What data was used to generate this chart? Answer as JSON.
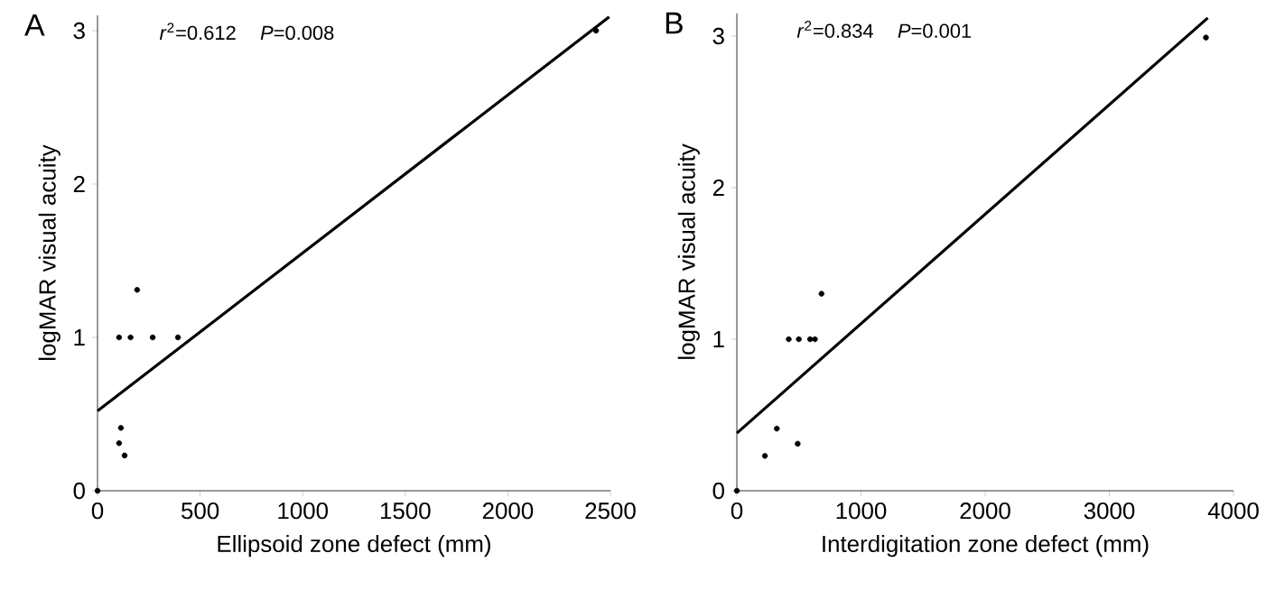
{
  "chart_data": [
    {
      "type": "scatter",
      "title": "A",
      "xlabel": "Ellipsoid zone defect (mm)",
      "ylabel": "logMAR visual acuity",
      "annotations": [
        "*r*$^{2}$=0.612",
        "*P*=0.008"
      ],
      "xlim": [
        0,
        2500
      ],
      "ylim": [
        0,
        3.1
      ],
      "xticks": [
        0,
        500,
        1000,
        1500,
        2000,
        2500
      ],
      "yticks": [
        0,
        1,
        2,
        3
      ],
      "marker": "circle",
      "grid": false,
      "series": [
        {
          "color": "#000000",
          "x": [
            0,
            105,
            114,
            132,
            105,
            161,
            269,
            392,
            193,
            2430
          ],
          "values": [
            0,
            0.31,
            0.41,
            0.23,
            1,
            1,
            1,
            1,
            1.31,
            3
          ]
        },
        {
          "type": "line",
          "marker": "none",
          "line_style": "solid",
          "color": "#000000",
          "x": [
            0,
            2494
          ],
          "values": [
            0.52,
            3.09
          ]
        }
      ]
    },
    {
      "type": "scatter",
      "title": "B",
      "xlabel": "Interdigitation zone defect (mm)",
      "ylabel": "logMAR visual acuity",
      "annotations": [
        "*r*$^{2}$=0.834",
        "*P*=0.001"
      ],
      "xlim": [
        0,
        4000
      ],
      "ylim": [
        0,
        3.15
      ],
      "xticks": [
        0,
        1000,
        2000,
        3000,
        4000
      ],
      "yticks": [
        0,
        1,
        2,
        3
      ],
      "marker": "circle",
      "grid": false,
      "series": [
        {
          "color": "#000000",
          "x": [
            0,
            226,
            322,
            490,
            418,
            499,
            590,
            629,
            682,
            3778
          ],
          "values": [
            0,
            0.23,
            0.41,
            0.31,
            1,
            1,
            1,
            1,
            1.3,
            2.99
          ]
        },
        {
          "type": "line",
          "marker": "none",
          "line_style": "solid",
          "color": "#000000",
          "x": [
            0,
            3793
          ],
          "values": [
            0.38,
            3.12
          ]
        }
      ]
    }
  ]
}
